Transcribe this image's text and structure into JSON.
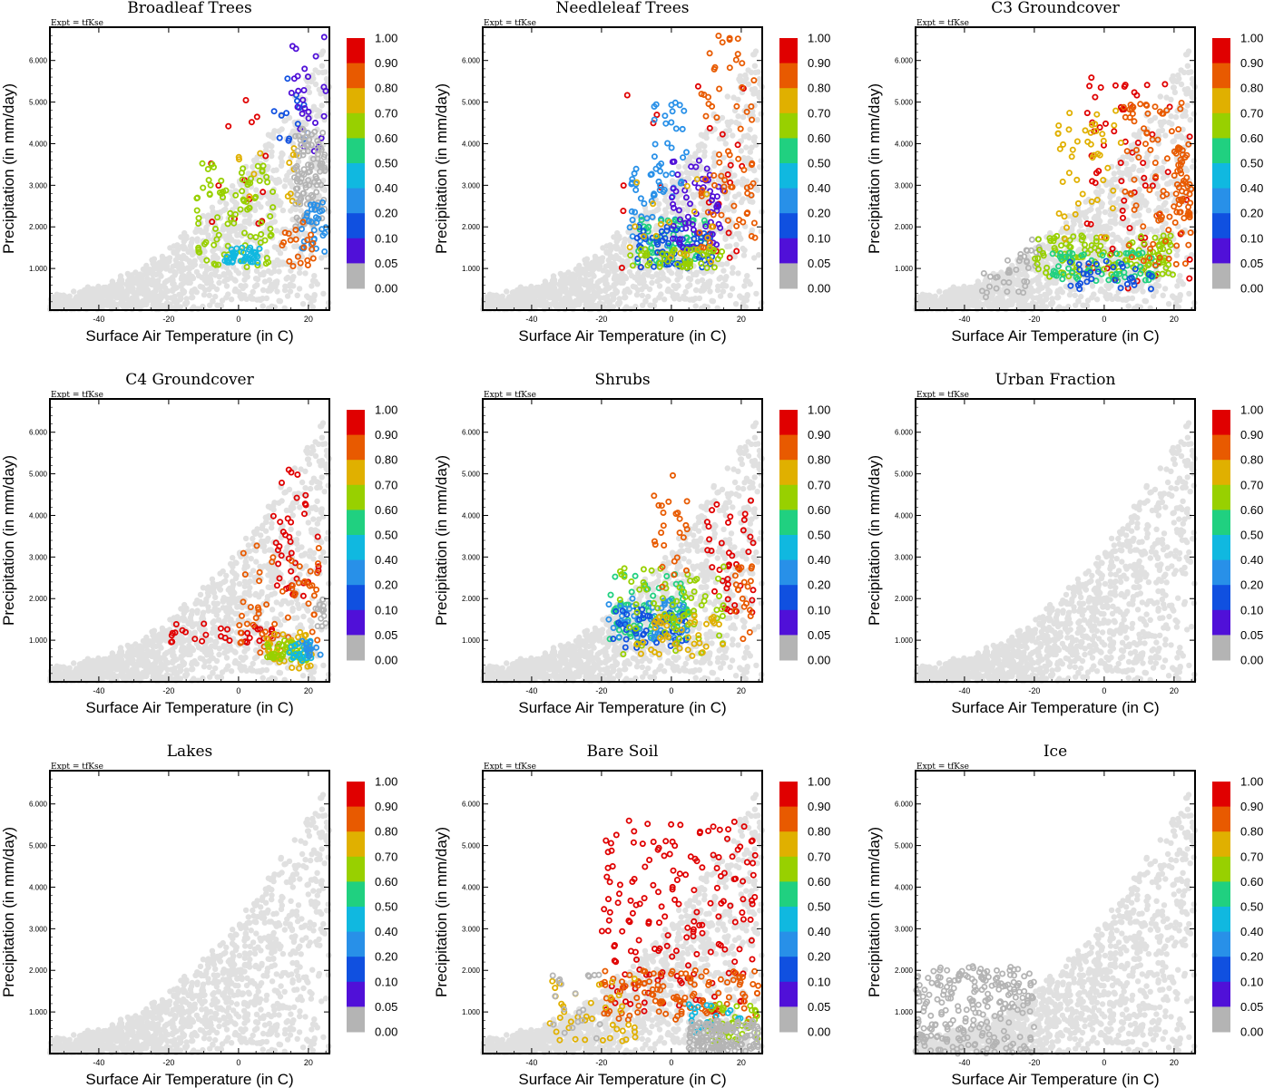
{
  "chart_data": {
    "type": "scatter",
    "expt_label": "Expt = tfKse",
    "xlabel": "Surface Air Temperature (in C)",
    "ylabel": "Precipitation (in mm/day)",
    "xlim": [
      -54,
      26
    ],
    "ylim": [
      0,
      6.8
    ],
    "x_ticks": [
      -40,
      -20,
      0,
      20
    ],
    "x_tick_labels": [
      "-40",
      "-20",
      "0",
      "20"
    ],
    "y_ticks": [
      1,
      2,
      3,
      4,
      5,
      6
    ],
    "y_tick_labels": [
      "1.000",
      "2.000",
      "3.000",
      "4.000",
      "5.000",
      "6.000"
    ],
    "colorbar": {
      "labels": [
        "1.00",
        "0.90",
        "0.80",
        "0.70",
        "0.60",
        "0.50",
        "0.40",
        "0.20",
        "0.10",
        "0.05",
        "0.00"
      ],
      "colors": [
        "#e00000",
        "#e85a00",
        "#e0b000",
        "#98d000",
        "#20d080",
        "#10b8e0",
        "#2890e8",
        "#1050e0",
        "#5010d8",
        "#b4b4b4"
      ]
    },
    "background_color": "#e0e0e0",
    "panels": [
      {
        "title": "Broadleaf Trees",
        "clusters": [
          {
            "cls": 0,
            "x": [
              -8,
              8
            ],
            "y": [
              2.0,
              5.2
            ],
            "n": 14
          },
          {
            "cls": 3,
            "x": [
              -12,
              10
            ],
            "y": [
              1.0,
              3.6
            ],
            "n": 90
          },
          {
            "cls": 5,
            "x": [
              -4,
              6
            ],
            "y": [
              1.1,
              1.5
            ],
            "n": 40
          },
          {
            "cls": 2,
            "x": [
              0,
              18
            ],
            "y": [
              2.5,
              4.2
            ],
            "n": 14
          },
          {
            "cls": 7,
            "x": [
              10,
              20
            ],
            "y": [
              4.0,
              5.6
            ],
            "n": 14
          },
          {
            "cls": 8,
            "x": [
              15,
              25
            ],
            "y": [
              3.8,
              6.6
            ],
            "n": 26
          },
          {
            "cls": 9,
            "x": [
              16,
              25
            ],
            "y": [
              2.0,
              4.4
            ],
            "n": 110
          },
          {
            "cls": 6,
            "x": [
              18,
              25
            ],
            "y": [
              1.4,
              2.6
            ],
            "n": 30
          },
          {
            "cls": 1,
            "x": [
              12,
              22
            ],
            "y": [
              1.0,
              2.2
            ],
            "n": 20
          }
        ]
      },
      {
        "title": "Needleleaf Trees",
        "clusters": [
          {
            "cls": 0,
            "x": [
              -15,
              22
            ],
            "y": [
              1.0,
              5.8
            ],
            "n": 25
          },
          {
            "cls": 6,
            "x": [
              -12,
              2
            ],
            "y": [
              1.5,
              3.4
            ],
            "n": 40
          },
          {
            "cls": 4,
            "x": [
              -10,
              10
            ],
            "y": [
              1.1,
              2.2
            ],
            "n": 60
          },
          {
            "cls": 7,
            "x": [
              -10,
              12
            ],
            "y": [
              1.0,
              2.0
            ],
            "n": 70
          },
          {
            "cls": 8,
            "x": [
              0,
              15
            ],
            "y": [
              1.4,
              3.6
            ],
            "n": 60
          },
          {
            "cls": 6,
            "x": [
              -5,
              5
            ],
            "y": [
              3.0,
              5.0
            ],
            "n": 25
          },
          {
            "cls": 3,
            "x": [
              -12,
              15
            ],
            "y": [
              1.0,
              1.5
            ],
            "n": 50
          },
          {
            "cls": 1,
            "x": [
              8,
              24
            ],
            "y": [
              1.5,
              6.6
            ],
            "n": 70
          },
          {
            "cls": 2,
            "x": [
              -12,
              12
            ],
            "y": [
              1.0,
              3.2
            ],
            "n": 20
          }
        ]
      },
      {
        "title": "C3 Groundcover",
        "clusters": [
          {
            "cls": 0,
            "x": [
              -5,
              25
            ],
            "y": [
              0.5,
              5.6
            ],
            "n": 70
          },
          {
            "cls": 9,
            "x": [
              -35,
              -22
            ],
            "y": [
              0.2,
              1.2
            ],
            "n": 25
          },
          {
            "cls": 9,
            "x": [
              -24,
              -18
            ],
            "y": [
              1.0,
              1.8
            ],
            "n": 15
          },
          {
            "cls": 3,
            "x": [
              -20,
              20
            ],
            "y": [
              0.8,
              1.8
            ],
            "n": 130
          },
          {
            "cls": 4,
            "x": [
              -15,
              15
            ],
            "y": [
              0.7,
              1.4
            ],
            "n": 60
          },
          {
            "cls": 7,
            "x": [
              -10,
              15
            ],
            "y": [
              0.5,
              1.2
            ],
            "n": 30
          },
          {
            "cls": 1,
            "x": [
              5,
              25
            ],
            "y": [
              1.0,
              5.0
            ],
            "n": 80
          },
          {
            "cls": 1,
            "x": [
              20,
              25
            ],
            "y": [
              2.2,
              4.0
            ],
            "n": 40
          },
          {
            "cls": 2,
            "x": [
              -15,
              5
            ],
            "y": [
              1.5,
              4.9
            ],
            "n": 45
          }
        ]
      },
      {
        "title": "C4 Groundcover",
        "clusters": [
          {
            "cls": 0,
            "x": [
              -20,
              10
            ],
            "y": [
              0.9,
              1.4
            ],
            "n": 30
          },
          {
            "cls": 0,
            "x": [
              10,
              24
            ],
            "y": [
              2.0,
              5.3
            ],
            "n": 40
          },
          {
            "cls": 1,
            "x": [
              0,
              24
            ],
            "y": [
              0.6,
              3.3
            ],
            "n": 60
          },
          {
            "cls": 2,
            "x": [
              8,
              22
            ],
            "y": [
              0.3,
              1.2
            ],
            "n": 35
          },
          {
            "cls": 3,
            "x": [
              8,
              20
            ],
            "y": [
              0.5,
              1.0
            ],
            "n": 40
          },
          {
            "cls": 5,
            "x": [
              14,
              22
            ],
            "y": [
              0.5,
              1.0
            ],
            "n": 20
          },
          {
            "cls": 6,
            "x": [
              18,
              24
            ],
            "y": [
              0.6,
              1.2
            ],
            "n": 12
          },
          {
            "cls": 9,
            "x": [
              20,
              25
            ],
            "y": [
              1.3,
              2.0
            ],
            "n": 14
          }
        ]
      },
      {
        "title": "Shrubs",
        "clusters": [
          {
            "cls": 0,
            "x": [
              10,
              24
            ],
            "y": [
              1.6,
              4.4
            ],
            "n": 40
          },
          {
            "cls": 4,
            "x": [
              -18,
              5
            ],
            "y": [
              1.0,
              2.6
            ],
            "n": 70
          },
          {
            "cls": 6,
            "x": [
              -18,
              5
            ],
            "y": [
              1.0,
              2.0
            ],
            "n": 55
          },
          {
            "cls": 7,
            "x": [
              -18,
              5
            ],
            "y": [
              0.8,
              1.8
            ],
            "n": 45
          },
          {
            "cls": 3,
            "x": [
              -15,
              15
            ],
            "y": [
              0.6,
              2.8
            ],
            "n": 70
          },
          {
            "cls": 1,
            "x": [
              -5,
              5
            ],
            "y": [
              2.0,
              5.0
            ],
            "n": 25
          },
          {
            "cls": 1,
            "x": [
              18,
              24
            ],
            "y": [
              1.0,
              2.8
            ],
            "n": 20
          },
          {
            "cls": 2,
            "x": [
              -10,
              15
            ],
            "y": [
              0.6,
              1.6
            ],
            "n": 40
          }
        ]
      },
      {
        "title": "Urban Fraction",
        "clusters": []
      },
      {
        "title": "Lakes",
        "clusters": []
      },
      {
        "title": "Bare Soil",
        "clusters": [
          {
            "cls": 0,
            "x": [
              -20,
              24
            ],
            "y": [
              1.0,
              5.6
            ],
            "n": 180
          },
          {
            "cls": 1,
            "x": [
              -20,
              25
            ],
            "y": [
              0.8,
              2.0
            ],
            "n": 110
          },
          {
            "cls": 2,
            "x": [
              -35,
              -10
            ],
            "y": [
              0.3,
              1.8
            ],
            "n": 40
          },
          {
            "cls": 3,
            "x": [
              10,
              25
            ],
            "y": [
              0.3,
              1.2
            ],
            "n": 40
          },
          {
            "cls": 5,
            "x": [
              5,
              20
            ],
            "y": [
              0.5,
              1.2
            ],
            "n": 20
          },
          {
            "cls": 9,
            "x": [
              5,
              25
            ],
            "y": [
              0.05,
              0.8
            ],
            "n": 150
          },
          {
            "cls": 9,
            "x": [
              -34,
              -20
            ],
            "y": [
              0.3,
              1.9
            ],
            "n": 20
          }
        ]
      },
      {
        "title": "Ice",
        "clusters": [
          {
            "cls": 9,
            "x": [
              -54,
              -20
            ],
            "y": [
              0.0,
              2.1
            ],
            "n": 240
          }
        ]
      }
    ]
  }
}
